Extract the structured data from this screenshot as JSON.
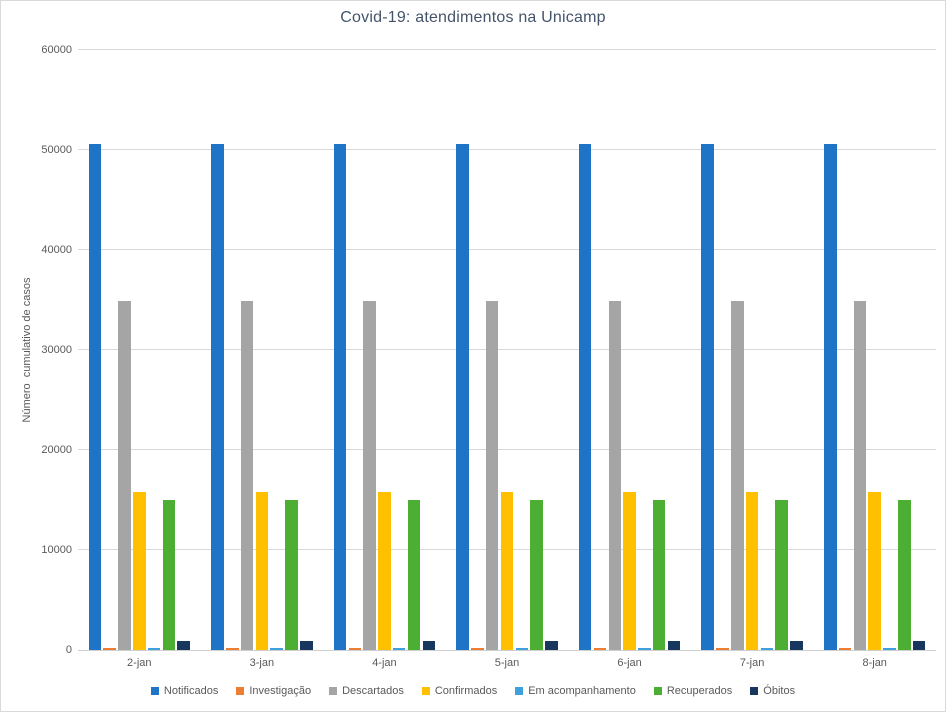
{
  "title": "Covid-19: atendimentos na Unicamp",
  "colors": {
    "title_text": "#44546A",
    "axis_text": "#595959",
    "gridline": "#D9D9D9"
  },
  "chart_data": {
    "type": "bar",
    "title": "Covid-19: atendimentos na Unicamp",
    "xlabel": "",
    "ylabel": "Número  cumulativo de casos",
    "ylim": [
      0,
      60000
    ],
    "ytick_step": 10000,
    "ytick_labels": [
      "0",
      "10000",
      "20000",
      "30000",
      "40000",
      "50000",
      "60000"
    ],
    "grid": true,
    "legend_position": "bottom",
    "categories": [
      "2-jan",
      "3-jan",
      "4-jan",
      "5-jan",
      "6-jan",
      "7-jan",
      "8-jan"
    ],
    "series": [
      {
        "name": "Notificados",
        "color": "#1F74C8",
        "values": [
          50600,
          50600,
          50600,
          50600,
          50600,
          50600,
          50600
        ]
      },
      {
        "name": "Investigação",
        "color": "#ED7D31",
        "values": [
          250,
          250,
          250,
          250,
          250,
          250,
          250
        ]
      },
      {
        "name": "Descartados",
        "color": "#A5A5A5",
        "values": [
          34900,
          34900,
          34900,
          34900,
          34900,
          34900,
          34900
        ]
      },
      {
        "name": "Confirmados",
        "color": "#FFC000",
        "values": [
          15800,
          15800,
          15800,
          15800,
          15800,
          15800,
          15800
        ]
      },
      {
        "name": "Em acompanhamento",
        "color": "#3FA0DB",
        "values": [
          200,
          200,
          200,
          200,
          200,
          200,
          200
        ]
      },
      {
        "name": "Recuperados",
        "color": "#4CAE32",
        "values": [
          15000,
          15000,
          15000,
          15000,
          15000,
          15000,
          15000
        ]
      },
      {
        "name": "Óbitos",
        "color": "#17375E",
        "values": [
          900,
          900,
          900,
          900,
          900,
          900,
          900
        ]
      }
    ]
  }
}
